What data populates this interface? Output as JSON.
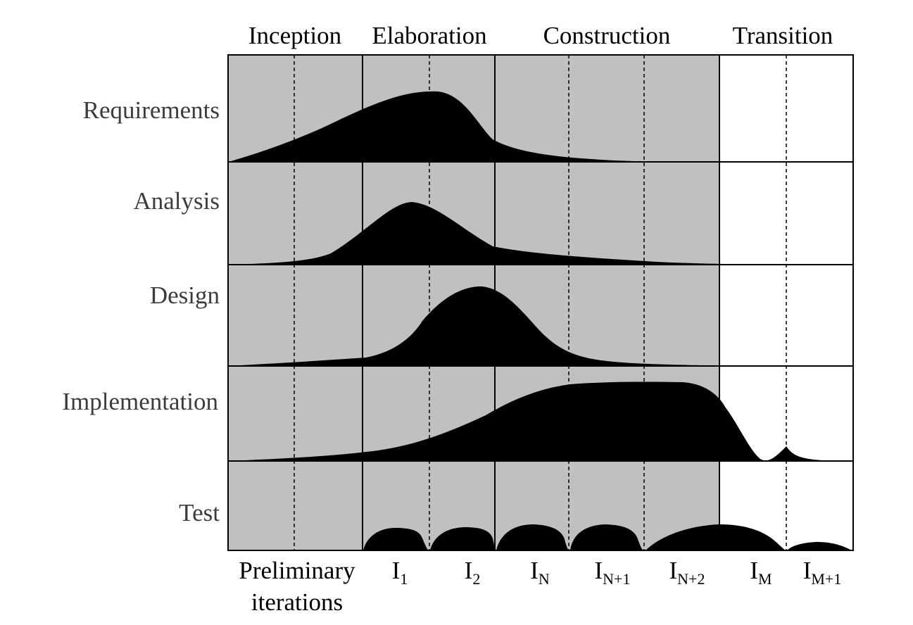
{
  "phases": [
    {
      "label": "Inception"
    },
    {
      "label": "Elaboration"
    },
    {
      "label": "Construction"
    },
    {
      "label": "Transition"
    }
  ],
  "disciplines": [
    {
      "label": "Requirements"
    },
    {
      "label": "Analysis"
    },
    {
      "label": "Design"
    },
    {
      "label": "Implementation"
    },
    {
      "label": "Test"
    }
  ],
  "iterations": [
    {
      "line1": "Preliminary",
      "line2": "iterations"
    },
    {
      "base": "I",
      "sub": "1"
    },
    {
      "base": "I",
      "sub": "2"
    },
    {
      "base": "I",
      "sub": "N"
    },
    {
      "base": "I",
      "sub": "N+1"
    },
    {
      "base": "I",
      "sub": "N+2"
    },
    {
      "base": "I",
      "sub": "M"
    },
    {
      "base": "I",
      "sub": "M+1"
    }
  ],
  "colors": {
    "shaded_background": "#c0c0c0",
    "unshaded_background": "#ffffff",
    "workload_fill": "#000000",
    "discipline_text": "#3c3c3c"
  }
}
